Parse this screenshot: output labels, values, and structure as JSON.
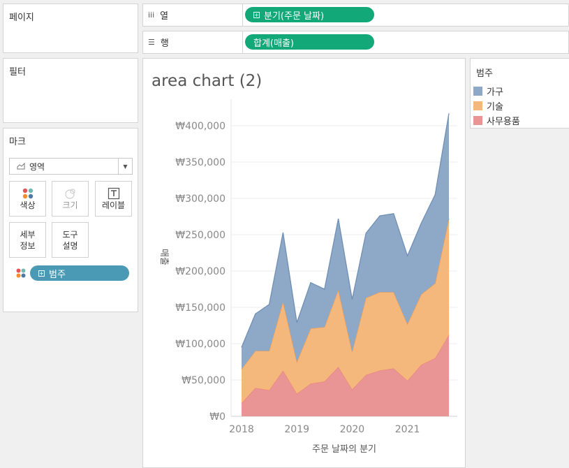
{
  "panels": {
    "pages_title": "페이지",
    "filters_title": "필터",
    "marks_title": "마크"
  },
  "shelves": {
    "columns": {
      "label": "열",
      "icon": "columns-icon",
      "pill": "분기(주문 날짜)"
    },
    "rows": {
      "label": "행",
      "icon": "rows-icon",
      "pill": "합계(매출)"
    }
  },
  "marks": {
    "mark_type": "영역",
    "buttons": {
      "color": "색상",
      "size": "크기",
      "label": "레이블",
      "detail": "세부\n정보",
      "tooltip": "도구\n설명"
    },
    "color_pill": "범주"
  },
  "legend": {
    "title": "범주",
    "items": [
      {
        "label": "가구",
        "color": "#8ea9c7"
      },
      {
        "label": "기술",
        "color": "#f5b87c"
      },
      {
        "label": "사무용품",
        "color": "#ea9595"
      }
    ]
  },
  "chart_data": {
    "type": "area",
    "title": "area chart (2)",
    "xlabel": "주문 날짜의 분기",
    "ylabel": "매출",
    "stacked": true,
    "x": [
      "2018 Q1",
      "2018 Q2",
      "2018 Q3",
      "2018 Q4",
      "2019 Q1",
      "2019 Q2",
      "2019 Q3",
      "2019 Q4",
      "2020 Q1",
      "2020 Q2",
      "2020 Q3",
      "2020 Q4",
      "2021 Q1",
      "2021 Q2",
      "2021 Q3",
      "2021 Q4"
    ],
    "x_tick_labels": [
      "2018",
      "2019",
      "2020",
      "2021"
    ],
    "y_tick_labels": [
      "₩0",
      "₩50,000",
      "₩100,000",
      "₩150,000",
      "₩200,000",
      "₩250,000",
      "₩300,000",
      "₩350,000",
      "₩400,000"
    ],
    "ylim": [
      0,
      435000
    ],
    "grid": true,
    "series": [
      {
        "name": "사무용품",
        "color": "#ea9595",
        "line": "#e8807f",
        "values": [
          18000,
          39000,
          36000,
          63000,
          31000,
          45000,
          48000,
          68000,
          37000,
          57000,
          63000,
          66000,
          49000,
          71000,
          80000,
          112000
        ]
      },
      {
        "name": "기술",
        "color": "#f5b87c",
        "line": "#f09e55",
        "values": [
          47000,
          51000,
          54000,
          95000,
          44000,
          76000,
          75000,
          106000,
          52000,
          106000,
          108000,
          105000,
          78000,
          97000,
          103000,
          160000
        ]
      },
      {
        "name": "가구",
        "color": "#8ea9c7",
        "line": "#6f8fb4",
        "values": [
          30000,
          51000,
          64000,
          95000,
          54000,
          63000,
          52000,
          98000,
          72000,
          89000,
          105000,
          108000,
          94000,
          98000,
          122000,
          145000
        ]
      }
    ]
  }
}
